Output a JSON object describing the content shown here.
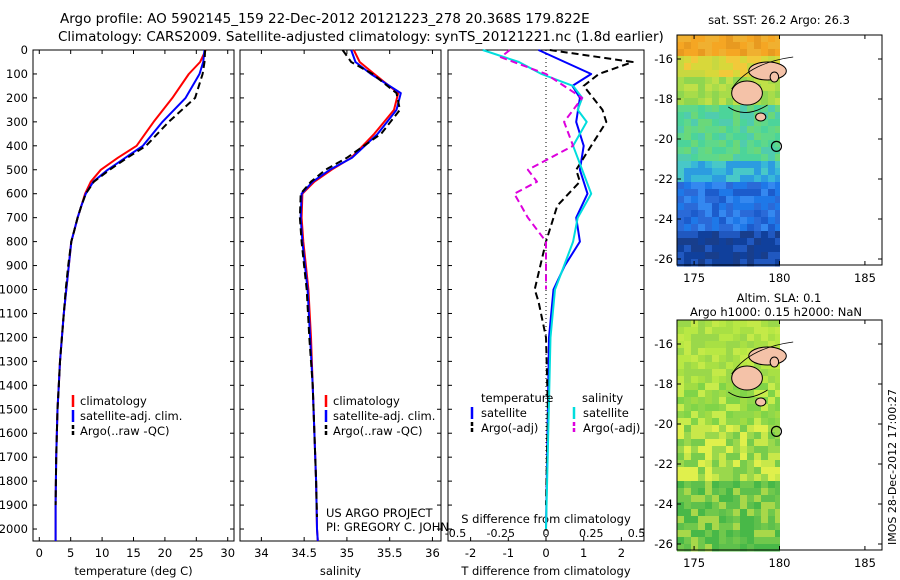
{
  "header": {
    "line1": "Argo profile: AO 5902145_159 22-Dec-2012 20121223_278 20.368S 179.822E",
    "line2": "Climatology: CARS2009. Satellite-adjusted climatology: synTS_20121221.nc (1.8d earlier)"
  },
  "side_text": "IMOS 28-Dec-2012 17:00:27",
  "chart_data": [
    {
      "id": "temperature",
      "type": "line",
      "xlabel": "temperature (deg C)",
      "xlim": [
        -1,
        31
      ],
      "xticks": [
        0,
        5,
        10,
        15,
        20,
        25,
        30
      ],
      "ylim": [
        0,
        2050
      ],
      "yticks": [
        0,
        100,
        200,
        300,
        400,
        500,
        600,
        700,
        800,
        900,
        1000,
        1100,
        1200,
        1300,
        1400,
        1500,
        1600,
        1700,
        1800,
        1900,
        2000
      ],
      "legend": [
        "climatology",
        "satellite-adj. clim.",
        "Argo(..raw -QC)"
      ],
      "series": [
        {
          "name": "climatology",
          "color": "#ff0000",
          "style": "solid",
          "x": [
            26.5,
            25.6,
            23.8,
            21.2,
            18.2,
            15.5,
            12.5,
            9.8,
            8.2,
            7.3,
            6.7,
            6.1,
            5.6,
            5.1,
            4.7,
            4.3,
            3.9,
            3.6,
            3.3,
            3.1,
            2.9,
            2.7,
            2.6,
            2.6
          ],
          "y": [
            0,
            50,
            100,
            200,
            300,
            400,
            450,
            500,
            550,
            600,
            650,
            700,
            750,
            800,
            900,
            1000,
            1100,
            1200,
            1300,
            1400,
            1500,
            1700,
            1900,
            2050
          ]
        },
        {
          "name": "satellite-adj. clim.",
          "color": "#0000ff",
          "style": "solid",
          "x": [
            26.3,
            26.1,
            25.5,
            23.3,
            19.6,
            16.5,
            13.7,
            10.9,
            8.6,
            7.4,
            6.7,
            6.1,
            5.6,
            5.1,
            4.7,
            4.3,
            3.9,
            3.6,
            3.3,
            3.1,
            2.9,
            2.7,
            2.6,
            2.6
          ],
          "y": [
            0,
            50,
            100,
            200,
            300,
            400,
            450,
            500,
            550,
            600,
            650,
            700,
            750,
            800,
            900,
            1000,
            1100,
            1200,
            1300,
            1400,
            1500,
            1700,
            1900,
            2050
          ]
        },
        {
          "name": "Argo(..raw -QC)",
          "color": "#000000",
          "style": "dashed",
          "x": [
            26.4,
            26.3,
            26.0,
            24.8,
            20.6,
            17.0,
            14.0,
            11.2,
            8.7,
            7.4,
            6.7,
            6.1,
            5.6,
            5.1,
            4.6,
            4.2,
            3.9,
            3.6,
            3.3,
            3.1,
            2.9,
            2.7,
            2.6
          ],
          "y": [
            0,
            50,
            100,
            200,
            300,
            400,
            450,
            500,
            550,
            600,
            650,
            700,
            750,
            800,
            900,
            1000,
            1100,
            1200,
            1300,
            1400,
            1500,
            1700,
            1900
          ]
        }
      ]
    },
    {
      "id": "salinity",
      "type": "line",
      "xlabel": "salinity",
      "xlim": [
        33.75,
        36.1
      ],
      "xticks": [
        34,
        34.5,
        35,
        35.5,
        36
      ],
      "xticklabels": [
        "34",
        "34.5",
        "35",
        "35.5",
        "36"
      ],
      "ylim": [
        0,
        2050
      ],
      "legend": [
        "climatology",
        "satellite-adj. clim.",
        "Argo(..raw -QC)"
      ],
      "annotations": [
        "US ARGO PROJECT",
        "PI: GREGORY C. JOHNSON"
      ],
      "series": [
        {
          "name": "climatology",
          "color": "#ff0000",
          "style": "solid",
          "x": [
            35.08,
            35.15,
            35.32,
            35.6,
            35.55,
            35.32,
            35.05,
            34.82,
            34.62,
            34.48,
            34.47,
            34.49,
            34.52,
            34.55,
            34.58,
            34.6,
            34.62,
            34.64,
            34.65,
            34.66
          ],
          "y": [
            0,
            50,
            100,
            180,
            250,
            350,
            450,
            500,
            550,
            600,
            700,
            800,
            900,
            1000,
            1200,
            1400,
            1600,
            1800,
            2000,
            2050
          ]
        },
        {
          "name": "satellite-adj. clim.",
          "color": "#0000ff",
          "style": "solid",
          "x": [
            35.05,
            35.1,
            35.28,
            35.63,
            35.58,
            35.36,
            35.06,
            34.8,
            34.6,
            34.47,
            34.46,
            34.48,
            34.51,
            34.54,
            34.57,
            34.6,
            34.62,
            34.64,
            34.65,
            34.66
          ],
          "y": [
            0,
            50,
            100,
            180,
            250,
            350,
            450,
            500,
            550,
            600,
            700,
            800,
            900,
            1000,
            1200,
            1400,
            1600,
            1800,
            2000,
            2050
          ]
        },
        {
          "name": "Argo(..raw -QC)",
          "color": "#000000",
          "style": "dashed",
          "x": [
            34.95,
            35.05,
            35.3,
            35.58,
            35.62,
            35.4,
            35.0,
            34.75,
            34.58,
            34.46,
            34.45,
            34.47,
            34.5,
            34.53,
            34.56,
            34.6,
            34.62,
            34.64,
            34.65
          ],
          "y": [
            0,
            50,
            100,
            180,
            250,
            350,
            450,
            500,
            550,
            600,
            700,
            800,
            900,
            1000,
            1200,
            1400,
            1600,
            1800,
            1950
          ]
        }
      ]
    },
    {
      "id": "difference",
      "type": "line",
      "xlabel": "T difference from climatology",
      "xlabel2": "S difference from climatology",
      "xlim": [
        -2.6,
        2.6
      ],
      "xticks": [
        -2,
        -1,
        0,
        1,
        2
      ],
      "xticks2": [
        -0.5,
        -0.25,
        0,
        0.25,
        0.5
      ],
      "xticklabels2": [
        "-0.5",
        "-0.25",
        "0",
        "0.25",
        "0.5"
      ],
      "ylim": [
        0,
        2050
      ],
      "legend_groups": [
        {
          "title": "temperature",
          "items": [
            "satellite",
            "Argo(-adj)"
          ]
        },
        {
          "title": "salinity",
          "items": [
            "satellite",
            "Argo(-adj)"
          ]
        }
      ],
      "series": [
        {
          "name": "temperature satellite",
          "color": "#0000ff",
          "style": "solid",
          "x": [
            -0.2,
            0.5,
            1.2,
            0.7,
            0.9,
            0.8,
            1.0,
            0.9,
            1.1,
            0.8,
            0.9,
            0.5,
            0.2,
            0.08,
            0.05,
            0.0
          ],
          "y": [
            0,
            50,
            100,
            150,
            200,
            300,
            400,
            500,
            600,
            700,
            800,
            900,
            1000,
            1200,
            1500,
            2000
          ]
        },
        {
          "name": "temperature Argo(-adj)",
          "color": "#000000",
          "style": "dashed",
          "x": [
            0.1,
            2.3,
            1.4,
            1.0,
            1.5,
            1.6,
            1.2,
            0.8,
            0.9,
            0.3,
            0.0,
            -0.3,
            -0.2,
            0.0,
            0.05,
            0.0
          ],
          "y": [
            0,
            50,
            100,
            150,
            250,
            300,
            400,
            500,
            550,
            650,
            800,
            1000,
            1050,
            1200,
            1500,
            1900
          ]
        },
        {
          "name": "salinity satellite",
          "color": "#00dddd",
          "style": "solid",
          "x": [
            -0.7,
            -0.3,
            -0.05,
            0.3,
            0.4,
            0.35,
            0.45,
            0.3,
            0.4,
            0.5,
            0.35,
            0.3,
            0.2,
            0.1,
            0.05,
            0.0
          ],
          "y": [
            0,
            50,
            100,
            150,
            200,
            250,
            300,
            400,
            500,
            600,
            700,
            800,
            900,
            1000,
            1200,
            2000
          ]
        },
        {
          "name": "salinity Argo(-adj)",
          "color": "#dd00dd",
          "style": "dashed",
          "x": [
            -0.4,
            -0.5,
            0.0,
            0.4,
            0.2,
            0.3,
            -0.2,
            -0.1,
            -0.35,
            -0.2,
            0.0,
            0.0
          ],
          "y": [
            0,
            30,
            100,
            200,
            300,
            400,
            500,
            550,
            600,
            700,
            800,
            1000
          ]
        }
      ]
    },
    {
      "id": "sst-map",
      "type": "heatmap",
      "title": "sat. SST: 26.2 Argo: 26.3",
      "xlim": [
        174,
        186
      ],
      "ylim": [
        -26.3,
        -14.8
      ],
      "xticks": [
        175,
        180,
        185
      ],
      "yticks": [
        -16,
        -18,
        -20,
        -22,
        -24,
        -26
      ],
      "argo_position": {
        "lon": 179.822,
        "lat": -20.368
      }
    },
    {
      "id": "sla-map",
      "type": "heatmap",
      "title": "Altim. SLA: 0.1",
      "title2": "Argo h1000: 0.15 h2000: NaN",
      "xlim": [
        174,
        186
      ],
      "ylim": [
        -26.3,
        -14.8
      ],
      "xticks": [
        175,
        180,
        185
      ],
      "yticks": [
        -16,
        -18,
        -20,
        -22,
        -24,
        -26
      ],
      "argo_position": {
        "lon": 179.822,
        "lat": -20.368
      }
    }
  ]
}
